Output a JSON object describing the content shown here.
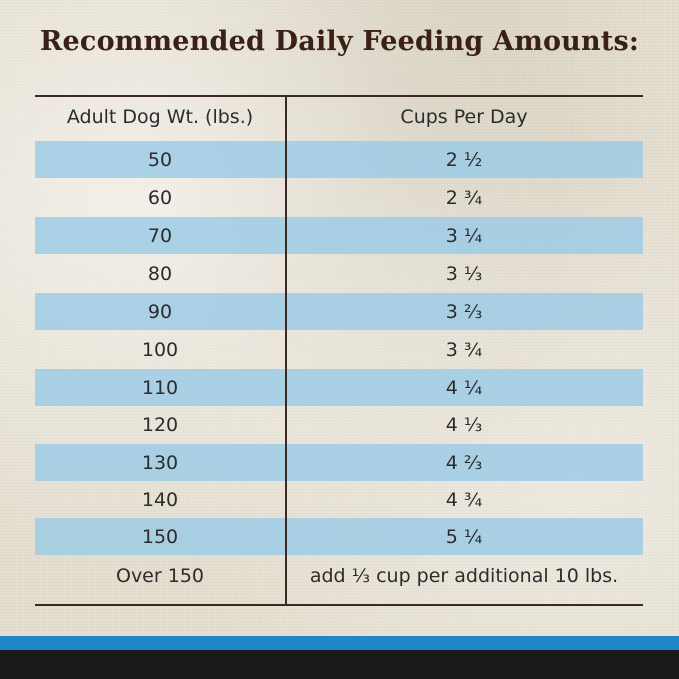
{
  "title": "Recommended Daily Feeding Amounts:",
  "table": {
    "headers": [
      "Adult Dog Wt. (lbs.)",
      "Cups Per Day"
    ],
    "rows": [
      {
        "weight": "50",
        "cups": "2 ½"
      },
      {
        "weight": "60",
        "cups": "2 ¾"
      },
      {
        "weight": "70",
        "cups": "3 ¼"
      },
      {
        "weight": "80",
        "cups": "3 ⅓"
      },
      {
        "weight": "90",
        "cups": "3 ⅔"
      },
      {
        "weight": "100",
        "cups": "3 ¾"
      },
      {
        "weight": "110",
        "cups": "4 ¼"
      },
      {
        "weight": "120",
        "cups": "4 ⅓"
      },
      {
        "weight": "130",
        "cups": "4 ⅔"
      },
      {
        "weight": "140",
        "cups": "4 ¾"
      },
      {
        "weight": "150",
        "cups": "5 ¼"
      },
      {
        "weight": "Over 150",
        "cups": "add ⅓ cup per additional 10 lbs."
      }
    ]
  },
  "colors": {
    "title": "#3a2016",
    "row_shade": "#9bcbe6",
    "footer_blue": "#1f86c8",
    "footer_black": "#1a1a1a"
  }
}
